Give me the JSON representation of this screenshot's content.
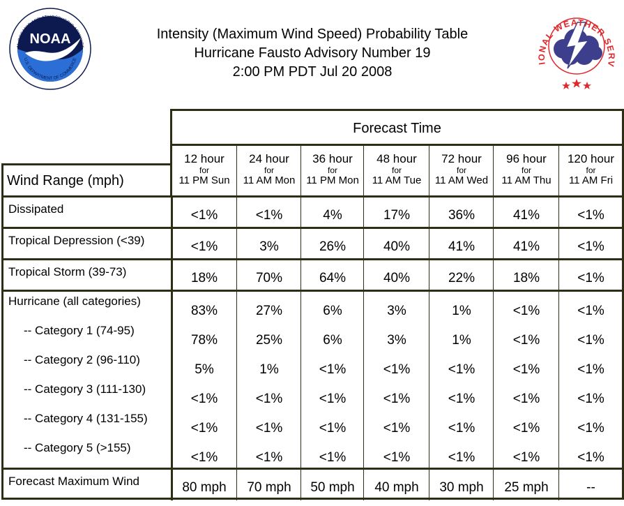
{
  "header": {
    "title_lines": [
      "Intensity (Maximum Wind Speed) Probability Table",
      "Hurricane Fausto Advisory Number 19",
      "2:00 PM PDT Jul 20 2008"
    ],
    "noaa_logo": {
      "center_text": "NOAA",
      "ring_text_top": "NATIONAL OCEANIC AND ATMOSPHERIC ADMINISTRATION",
      "ring_text_bottom": "U.S. DEPARTMENT OF COMMERCE"
    },
    "nws_logo": {
      "ring_text": "NATIONAL WEATHER SERVICE"
    }
  },
  "table": {
    "forecast_time_label": "Forecast Time",
    "wind_range_label": "Wind Range (mph)",
    "columns": [
      {
        "hours": "12 hour",
        "for": "for",
        "when": "11 PM Sun"
      },
      {
        "hours": "24 hour",
        "for": "for",
        "when": "11 AM Mon"
      },
      {
        "hours": "36 hour",
        "for": "for",
        "when": "11 PM Mon"
      },
      {
        "hours": "48 hour",
        "for": "for",
        "when": "11 AM Tue"
      },
      {
        "hours": "72 hour",
        "for": "for",
        "when": "11 AM Wed"
      },
      {
        "hours": "96 hour",
        "for": "for",
        "when": "11 AM Thu"
      },
      {
        "hours": "120 hour",
        "for": "for",
        "when": "11 AM Fri"
      }
    ],
    "groups": [
      {
        "rows": [
          {
            "label": "Dissipated",
            "values": [
              "<1%",
              "<1%",
              "4%",
              "17%",
              "36%",
              "41%",
              "<1%"
            ]
          }
        ]
      },
      {
        "rows": [
          {
            "label": "Tropical Depression (<39)",
            "values": [
              "<1%",
              "3%",
              "26%",
              "40%",
              "41%",
              "41%",
              "<1%"
            ]
          }
        ]
      },
      {
        "rows": [
          {
            "label": "Tropical Storm (39-73)",
            "values": [
              "18%",
              "70%",
              "64%",
              "40%",
              "22%",
              "18%",
              "<1%"
            ]
          }
        ]
      },
      {
        "rows": [
          {
            "label": "Hurricane (all categories)",
            "values": [
              "83%",
              "27%",
              "6%",
              "3%",
              "1%",
              "<1%",
              "<1%"
            ]
          },
          {
            "label": "-- Category 1 (74-95)",
            "values": [
              "78%",
              "25%",
              "6%",
              "3%",
              "1%",
              "<1%",
              "<1%"
            ]
          },
          {
            "label": "-- Category 2 (96-110)",
            "values": [
              "5%",
              "1%",
              "<1%",
              "<1%",
              "<1%",
              "<1%",
              "<1%"
            ]
          },
          {
            "label": "-- Category 3 (111-130)",
            "values": [
              "<1%",
              "<1%",
              "<1%",
              "<1%",
              "<1%",
              "<1%",
              "<1%"
            ]
          },
          {
            "label": "-- Category 4 (131-155)",
            "values": [
              "<1%",
              "<1%",
              "<1%",
              "<1%",
              "<1%",
              "<1%",
              "<1%"
            ]
          },
          {
            "label": "-- Category 5 (>155)",
            "values": [
              "<1%",
              "<1%",
              "<1%",
              "<1%",
              "<1%",
              "<1%",
              "<1%"
            ]
          }
        ]
      },
      {
        "rows": [
          {
            "label": "Forecast Maximum Wind",
            "values": [
              "80 mph",
              "70 mph",
              "50 mph",
              "40 mph",
              "30 mph",
              "25 mph",
              "--"
            ]
          }
        ]
      }
    ]
  },
  "colors": {
    "border": "#2e2e14",
    "noaa_blue": "#1f3f91",
    "noaa_dark": "#0c1a50",
    "nws_red": "#e0262a",
    "nws_cloud": "#3e3f8c",
    "nws_bolt": "#ffffff"
  }
}
